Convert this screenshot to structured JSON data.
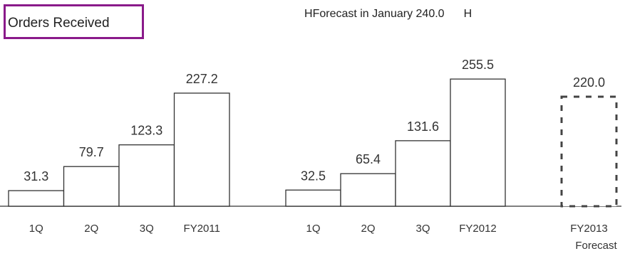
{
  "chart_data": {
    "type": "bar",
    "title": "Orders Received",
    "annotation": {
      "prefix_mark": "H",
      "text": "Forecast in January 240.0",
      "suffix_mark": "H"
    },
    "groups": [
      {
        "categories": [
          "1Q",
          "2Q",
          "3Q",
          "FY2011"
        ],
        "values": [
          31.3,
          79.7,
          123.3,
          227.2
        ]
      },
      {
        "categories": [
          "1Q",
          "2Q",
          "3Q",
          "FY2012"
        ],
        "values": [
          32.5,
          65.4,
          131.6,
          255.5
        ]
      },
      {
        "categories": [
          "FY2013\nForecast"
        ],
        "values": [
          220.0
        ],
        "style": "dashed-forecast"
      }
    ],
    "value_labels": {
      "g0": [
        "31.3",
        "79.7",
        "123.3",
        "227.2"
      ],
      "g1": [
        "32.5",
        "65.4",
        "131.6",
        "255.5"
      ],
      "g2": [
        "220.0"
      ]
    },
    "ylim": [
      0,
      280
    ],
    "grid": false,
    "legend": "none",
    "colors": {
      "bar_stroke": "#333333",
      "bar_fill": "#ffffff",
      "forecast_stroke": "#444444",
      "title_border": "#8a1a8a"
    }
  }
}
